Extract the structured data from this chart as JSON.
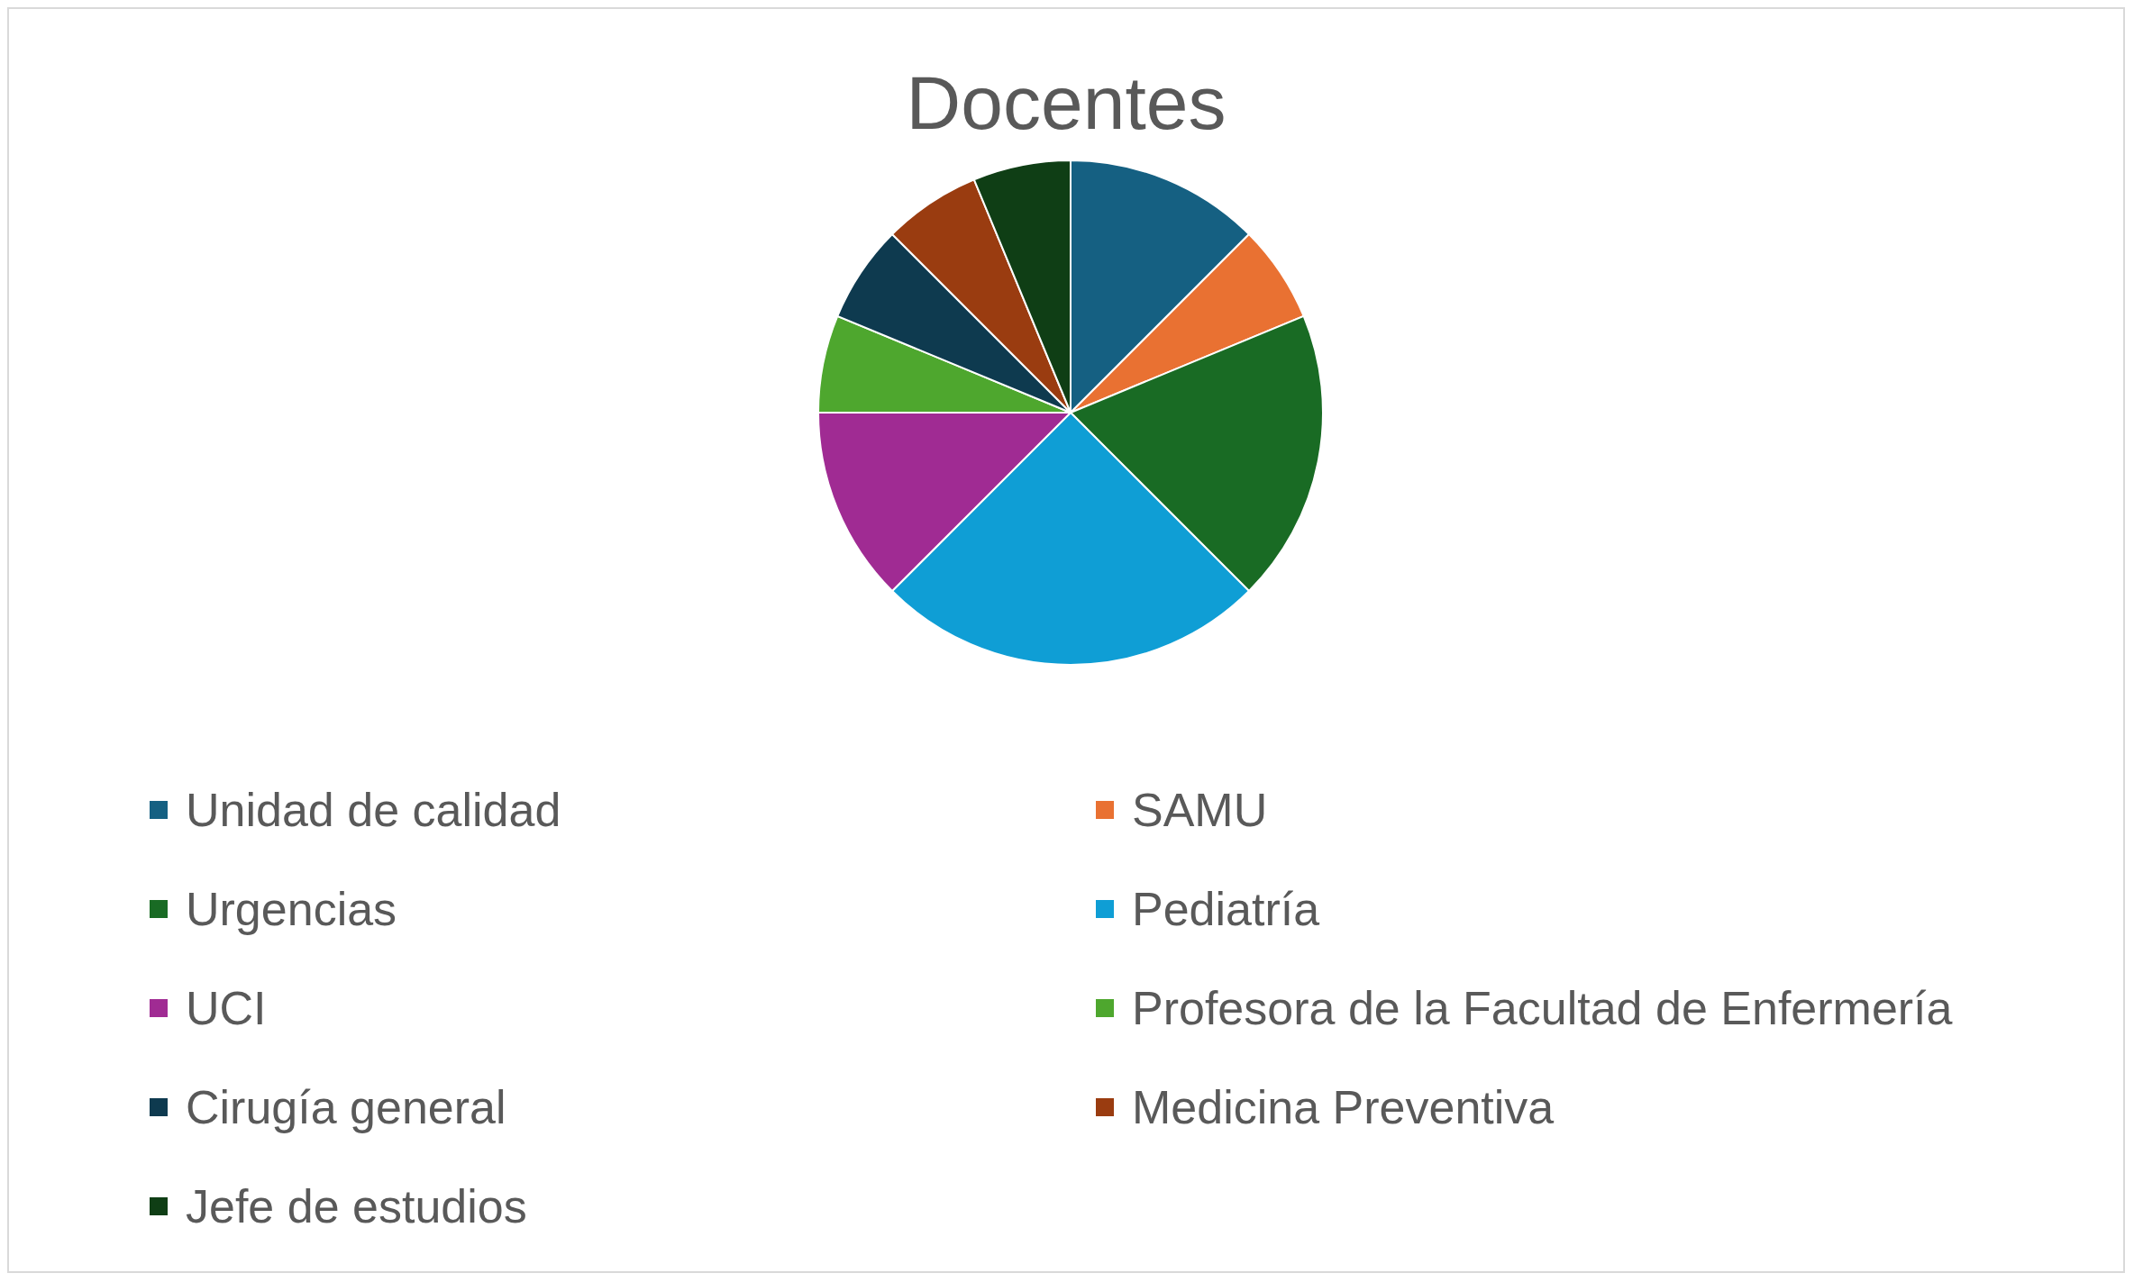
{
  "chart_data": {
    "type": "pie",
    "title": "Docentes",
    "categories": [
      "Unidad de calidad",
      "SAMU",
      "Urgencias",
      "Pediatría",
      "UCI",
      "Profesora de la Facultad de Enfermería",
      "Cirugía general",
      "Medicina Preventiva",
      "Jefe de estudios"
    ],
    "values": [
      12.5,
      6.25,
      18.75,
      25,
      12.5,
      6.25,
      6.25,
      6.25,
      6.25
    ],
    "colors": [
      "#156082",
      "#e97132",
      "#196b24",
      "#0f9ed5",
      "#a02b93",
      "#4ea72e",
      "#0e3a4f",
      "#9a3c10",
      "#0f3e15"
    ],
    "legend": "bottom"
  }
}
